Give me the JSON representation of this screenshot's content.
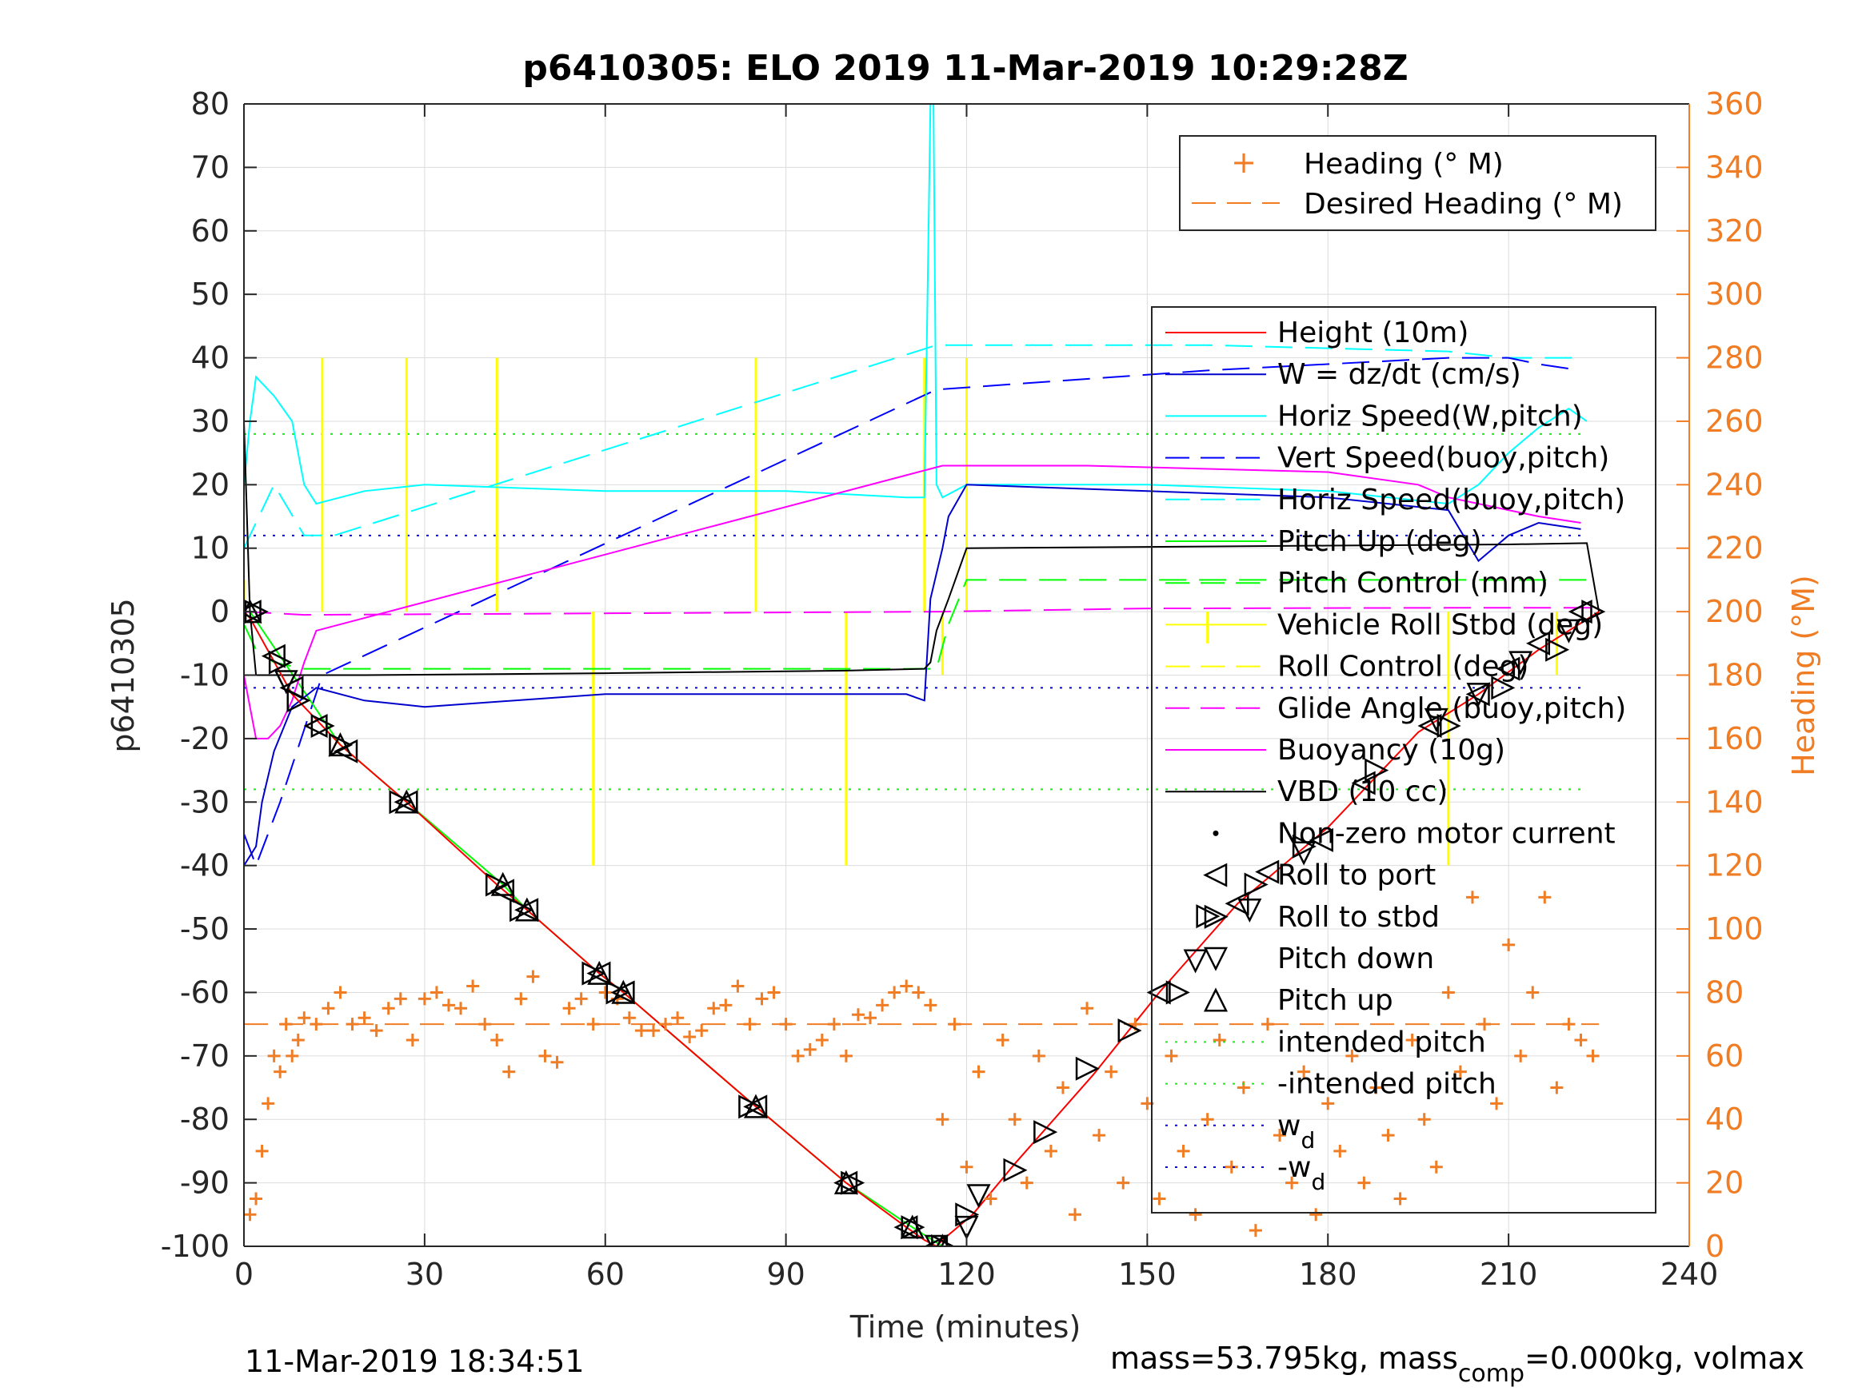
{
  "title": "p6410305: ELO 2019 11-Mar-2019 10:29:28Z",
  "footer_left": "11-Mar-2019 18:34:51",
  "footer_right": {
    "part1": "mass=53.795kg, mass",
    "sub": "comp",
    "part2": "=0.000kg, volmax"
  },
  "colors": {
    "heading_axis": "#f07c24",
    "height": "#ff0000",
    "w": "#0000cc",
    "horiz_speed": "#00ffff",
    "vert_speed": "#0000ff",
    "pitch": "#00ff00",
    "roll": "#ffff00",
    "glide": "#ff00ff",
    "buoyancy": "#ff00ff",
    "vbd": "#000000",
    "markers": "#000000",
    "intended_pitch": "#00ff00",
    "wd": "#0000ff"
  },
  "chart_data": {
    "type": "line",
    "x_axis": {
      "label": "Time (minutes)",
      "range": [
        0,
        240
      ],
      "ticks": [
        "0",
        "30",
        "60",
        "90",
        "120",
        "150",
        "180",
        "210",
        "240"
      ]
    },
    "y_axis_left": {
      "label": "p6410305",
      "range": [
        -100,
        80
      ],
      "ticks": [
        "80",
        "70",
        "60",
        "50",
        "40",
        "30",
        "20",
        "10",
        "0",
        "-10",
        "-20",
        "-30",
        "-40",
        "-50",
        "-60",
        "-70",
        "-80",
        "-90",
        "-100"
      ]
    },
    "y_axis_right": {
      "label": "Heading (°M)",
      "range": [
        0,
        360
      ],
      "ticks": [
        "360",
        "340",
        "320",
        "300",
        "280",
        "260",
        "240",
        "220",
        "200",
        "180",
        "160",
        "140",
        "120",
        "100",
        "80",
        "60",
        "40",
        "20",
        "0"
      ]
    },
    "grid": true,
    "legend_top": {
      "placement": "top-right",
      "entries": [
        "Heading (° M)",
        "Desired Heading (° M)"
      ]
    },
    "legend_main": {
      "placement": "right",
      "entries": [
        {
          "label": "Height (10m)",
          "style": "line-red"
        },
        {
          "label": "W = dz/dt (cm/s)",
          "style": "line-blue"
        },
        {
          "label": "Horiz Speed(W,pitch)",
          "style": "line-cyan"
        },
        {
          "label": "Vert Speed(buoy,pitch)",
          "style": "dash-blue"
        },
        {
          "label": "Horiz Speed(buoy,pitch)",
          "style": "dash-cyan"
        },
        {
          "label": "Pitch Up (deg)",
          "style": "line-green"
        },
        {
          "label": "Pitch Control (mm)",
          "style": "dash-green"
        },
        {
          "label": "Vehicle Roll Stbd (deg)",
          "style": "line-yellow"
        },
        {
          "label": "Roll Control (deg)",
          "style": "dash-yellow"
        },
        {
          "label": "Glide Angle (buoy,pitch)",
          "style": "dash-magenta"
        },
        {
          "label": "Buoyancy (10g)",
          "style": "line-magenta"
        },
        {
          "label": "VBD (10 cc)",
          "style": "line-black"
        },
        {
          "label": "Non-zero motor current",
          "style": "dot"
        },
        {
          "label": "Roll to port",
          "style": "tri-left"
        },
        {
          "label": "Roll to stbd",
          "style": "tri-right"
        },
        {
          "label": "Pitch down",
          "style": "tri-down"
        },
        {
          "label": "Pitch up",
          "style": "tri-up"
        },
        {
          "label": "intended pitch",
          "style": "dot-green"
        },
        {
          "label": "-intended pitch",
          "style": "dot-green"
        },
        {
          "label": "w",
          "sub": "d",
          "style": "dot-blue"
        },
        {
          "label": "-w",
          "sub": "d",
          "style": "dot-blue"
        }
      ]
    },
    "series": {
      "height": {
        "x": [
          0,
          1,
          8,
          16,
          27,
          42,
          47,
          59,
          63,
          85,
          100,
          110,
          113,
          115,
          116,
          121,
          128,
          141,
          152,
          165,
          180,
          195,
          205,
          215,
          225
        ],
        "y": [
          0,
          -1,
          -13,
          -21,
          -30,
          -43,
          -47,
          -57,
          -60,
          -78,
          -90,
          -97,
          -99,
          -100,
          -99,
          -95,
          -87,
          -73,
          -60,
          -46,
          -34,
          -19,
          -13,
          -6,
          0
        ]
      },
      "vbd": {
        "x": [
          0,
          1,
          2,
          20,
          60,
          100,
          113,
          114,
          115,
          117,
          120,
          150,
          180,
          210,
          223,
          225
        ],
        "y": [
          30,
          0,
          -10,
          -10,
          -9.7,
          -9.3,
          -9,
          -8,
          -3,
          2,
          10,
          10.2,
          10.4,
          10.6,
          10.8,
          0
        ]
      },
      "buoyancy": {
        "x": [
          0,
          1,
          2,
          4,
          6,
          8,
          10,
          12,
          116,
          140,
          160,
          180,
          195,
          200,
          205,
          210,
          215,
          222
        ],
        "y": [
          -10,
          -15,
          -20,
          -20,
          -18,
          -14,
          -8,
          -3,
          23,
          23,
          22.5,
          22,
          20,
          18,
          17,
          16,
          15,
          14
        ]
      },
      "glide_angle": {
        "x": [
          0,
          10,
          116,
          150,
          200,
          225
        ],
        "y": [
          0,
          -0.5,
          0,
          0.5,
          0.6,
          0.6
        ]
      },
      "pitch_control": {
        "x": [
          0,
          2,
          5,
          10,
          14,
          115,
          117,
          120,
          200,
          223
        ],
        "y": [
          -2,
          -6,
          -8,
          -9,
          -9,
          -9,
          -2,
          5,
          5,
          5
        ]
      },
      "pitch_up": {
        "x": [
          1,
          16,
          27,
          43,
          47,
          59,
          63,
          85,
          100,
          111,
          116
        ],
        "y": [
          0,
          -21,
          -30,
          -43,
          -47,
          -57,
          -60,
          -78,
          -90,
          -97,
          -100
        ]
      },
      "w": {
        "x": [
          0,
          2,
          3,
          5,
          8,
          12,
          20,
          30,
          60,
          90,
          110,
          113,
          114,
          116,
          117,
          120,
          150,
          180,
          200,
          205,
          210,
          215,
          222
        ],
        "y": [
          -40,
          -37,
          -30,
          -22,
          -15,
          -12,
          -14,
          -15,
          -13,
          -13,
          -13,
          -14,
          2,
          10,
          15,
          20,
          19,
          18,
          16,
          8,
          12,
          14,
          13
        ]
      },
      "horiz_speed_w": {
        "x": [
          0,
          1,
          2,
          5,
          8,
          10,
          12,
          20,
          30,
          60,
          90,
          110,
          113,
          114,
          114.5,
          115,
          116,
          120,
          150,
          180,
          200,
          205,
          210,
          215,
          220,
          223
        ],
        "y": [
          20,
          30,
          37,
          34,
          30,
          20,
          17,
          19,
          20,
          19,
          19,
          18,
          18,
          80,
          80,
          20,
          18,
          20,
          20,
          19,
          17,
          20,
          25,
          29,
          32,
          30
        ]
      },
      "vert_speed_buoy": {
        "x": [
          0,
          2,
          6,
          13,
          115,
          160,
          200,
          210,
          215,
          222
        ],
        "y": [
          -35,
          -40,
          -30,
          -10,
          35,
          38,
          40,
          40,
          39,
          38
        ]
      },
      "horiz_speed_buoy": {
        "x": [
          0,
          5,
          10,
          15,
          115,
          160,
          200,
          210,
          222
        ],
        "y": [
          10,
          20,
          12,
          12,
          42,
          42,
          41,
          40,
          40
        ]
      },
      "roll_spikes": {
        "x": [
          0,
          13,
          27,
          42,
          58,
          85,
          100,
          113,
          116,
          120,
          160,
          200,
          218
        ],
        "y": [
          5,
          40,
          40,
          40,
          -40,
          40,
          -40,
          40,
          -10,
          40,
          -5,
          -40,
          -10
        ]
      },
      "roll_to_port": {
        "x": [
          1,
          5,
          8,
          12,
          17,
          27,
          43,
          47,
          59,
          63,
          85,
          100,
          110,
          115,
          152,
          165,
          170,
          179,
          186,
          197,
          205,
          210,
          215,
          222
        ],
        "y": [
          0,
          -7,
          -12,
          -18,
          -22,
          -30,
          -44,
          -47,
          -57,
          -60,
          -78,
          -90,
          -97,
          -100,
          -60,
          -46,
          -41,
          -36,
          -27,
          -18,
          -13,
          -9,
          -5,
          0
        ]
      },
      "roll_to_stbd": {
        "x": [
          2,
          6,
          9,
          13,
          16,
          26,
          42,
          46,
          58,
          62,
          84,
          101,
          111,
          116,
          120,
          128,
          133,
          140,
          147,
          155,
          160,
          168,
          176,
          188,
          200,
          209,
          218,
          224
        ],
        "y": [
          0,
          -8,
          -14,
          -18,
          -21,
          -30,
          -43,
          -47,
          -57,
          -60,
          -78,
          -90,
          -97,
          -100,
          -95,
          -88,
          -82,
          -72,
          -66,
          -60,
          -48,
          -43,
          -37,
          -25,
          -18,
          -12,
          -6,
          0
        ]
      },
      "pitch_down": {
        "x": [
          7,
          115,
          120,
          122,
          158,
          167,
          176,
          198,
          205,
          212,
          220
        ],
        "y": [
          -11,
          -100,
          -97,
          -92,
          -55,
          -47,
          -38,
          -17,
          -13,
          -8,
          -3
        ]
      },
      "heading_early": {
        "x": [
          1,
          2,
          3,
          4,
          5,
          6,
          7,
          8,
          9,
          10,
          12,
          14,
          16,
          18,
          20,
          22,
          24,
          26,
          28,
          30,
          32,
          34,
          36,
          38,
          40,
          42,
          44,
          46,
          48,
          50,
          52,
          54,
          56,
          58,
          60,
          62,
          64,
          66,
          68,
          70,
          72,
          74,
          76,
          78,
          80,
          82,
          84,
          86,
          88,
          90,
          92,
          94,
          96,
          98,
          100,
          102,
          104,
          106,
          108,
          110,
          112,
          114
        ],
        "y": [
          10,
          15,
          30,
          45,
          60,
          55,
          70,
          60,
          65,
          72,
          70,
          75,
          80,
          70,
          72,
          68,
          75,
          78,
          65,
          78,
          80,
          76,
          75,
          82,
          70,
          65,
          55,
          78,
          85,
          60,
          58,
          75,
          78,
          70,
          80,
          78,
          72,
          68,
          68,
          70,
          72,
          66,
          68,
          75,
          76,
          82,
          70,
          78,
          80,
          70,
          60,
          62,
          65,
          70,
          60,
          73,
          72,
          76,
          80,
          82,
          80,
          76
        ]
      },
      "heading_late": {
        "x": [
          116,
          118,
          120,
          122,
          124,
          126,
          128,
          130,
          132,
          134,
          136,
          138,
          140,
          142,
          144,
          146,
          148,
          150,
          152,
          154,
          156,
          158,
          160,
          162,
          164,
          166,
          168,
          170,
          172,
          174,
          176,
          178,
          180,
          182,
          184,
          186,
          188,
          190,
          192,
          194,
          196,
          198,
          200,
          202,
          204,
          206,
          208,
          210,
          212,
          214,
          216,
          218,
          220,
          222,
          224
        ],
        "y": [
          40,
          70,
          25,
          55,
          15,
          65,
          40,
          20,
          60,
          30,
          50,
          10,
          75,
          35,
          55,
          20,
          70,
          45,
          15,
          60,
          30,
          10,
          40,
          65,
          25,
          50,
          5,
          70,
          35,
          20,
          55,
          10,
          45,
          30,
          60,
          20,
          50,
          35,
          15,
          65,
          40,
          25,
          80,
          55,
          110,
          70,
          45,
          95,
          60,
          80,
          110,
          50,
          70,
          65,
          60
        ]
      }
    }
  }
}
